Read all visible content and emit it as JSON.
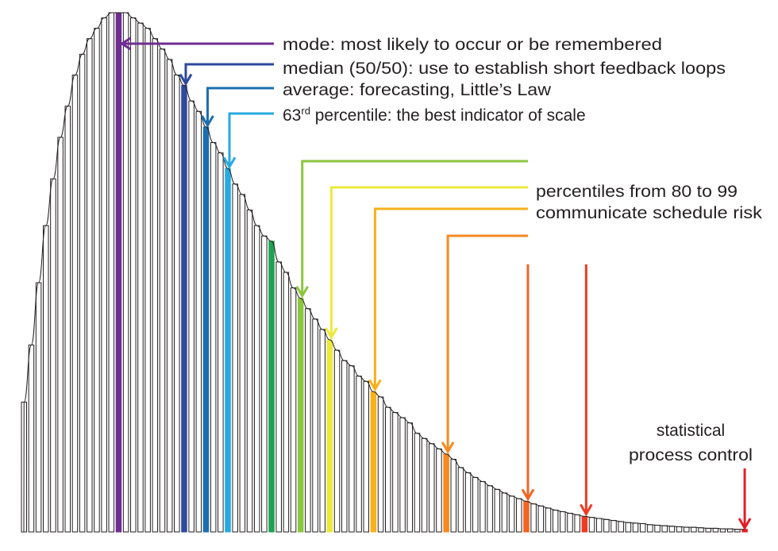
{
  "chart_data": {
    "type": "bar",
    "title": "",
    "xlabel": "",
    "ylabel": "",
    "grid": false,
    "bar_fill": "#ffffff",
    "bar_stroke": "#231f20",
    "curve_overlay": true,
    "values": [
      25,
      36,
      48,
      59,
      68,
      76,
      82,
      88,
      92,
      95,
      97,
      99,
      100,
      100,
      100,
      99,
      98,
      97,
      95,
      93,
      91,
      88,
      86,
      83,
      81,
      78,
      75,
      73,
      70,
      67,
      65,
      62,
      59,
      57,
      56,
      52,
      50,
      47,
      45,
      43,
      41,
      39,
      37,
      35,
      33,
      32,
      30,
      29,
      27,
      26,
      24,
      23,
      22,
      21,
      19,
      18,
      17,
      16,
      15,
      14,
      12.4,
      11.4,
      10.5,
      9.7,
      8.9,
      8.2,
      7.5,
      6.9,
      6.4,
      5.9,
      5.4,
      5.0,
      4.6,
      4.2,
      3.9,
      3.6,
      3.3,
      3.0,
      2.8,
      2.6,
      2.4,
      2.2,
      2.0,
      1.8,
      1.7,
      1.6,
      1.4,
      1.3,
      1.2,
      1.1,
      1.0,
      0.9,
      0.9,
      0.8,
      0.7,
      0.7,
      0.6,
      0.6,
      0.5,
      0.5
    ],
    "highlighted_bars": [
      {
        "index": 13,
        "color": "#6f2c91"
      },
      {
        "index": 22,
        "color": "#2e4a9e"
      },
      {
        "index": 25,
        "color": "#1b6fb0"
      },
      {
        "index": 28,
        "color": "#27aae1"
      },
      {
        "index": 34,
        "color": "#1fa253"
      },
      {
        "index": 38,
        "color": "#8cc63f"
      },
      {
        "index": 42,
        "color": "#ece93a"
      },
      {
        "index": 48,
        "color": "#f6b11b"
      },
      {
        "index": 58,
        "color": "#f58a20"
      },
      {
        "index": 69,
        "color": "#f26522"
      },
      {
        "index": 77,
        "color": "#ee3b24"
      },
      {
        "index": 99,
        "color": "#e21f26"
      }
    ],
    "annotations": {
      "mode": {
        "text": "mode: most likely to occur or be remembered",
        "color": "#6f2c91",
        "bar": 13
      },
      "median": {
        "text": "median (50/50): use to establish short feedback loops",
        "color": "#2e4a9e",
        "bar": 22
      },
      "average": {
        "text": "average: forecasting, Little’s Law",
        "color": "#1b6fb0",
        "bar": 25
      },
      "p63": {
        "number": "63",
        "suffix": "rd",
        "text": " percentile: the best indicator of scale",
        "color": "#27aae1",
        "bar": 28
      },
      "percentiles": {
        "line1": "percentiles from 80 to 99",
        "line2": "communicate schedule risk",
        "arrows": [
          {
            "color": "#8cc63f",
            "bar": 38
          },
          {
            "color": "#ece93a",
            "bar": 42
          },
          {
            "color": "#f6b11b",
            "bar": 48
          },
          {
            "color": "#f58a20",
            "bar": 58
          },
          {
            "color": "#f26522",
            "bar": 69
          },
          {
            "color": "#ee3b24",
            "bar": 77
          }
        ]
      },
      "spc": {
        "line1": "statistical",
        "line2": "process control",
        "color": "#e21f26",
        "bar": 99
      }
    }
  }
}
